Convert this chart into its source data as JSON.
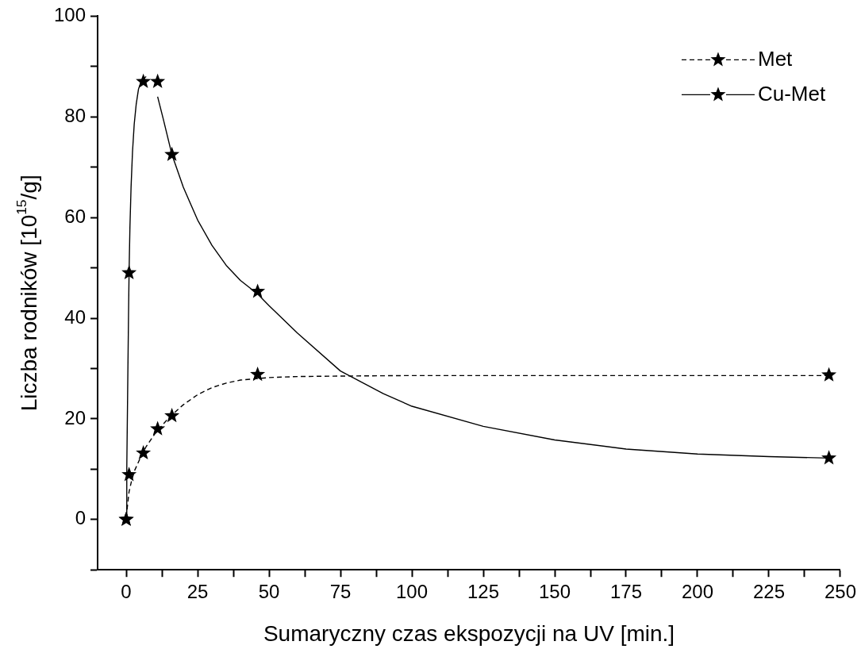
{
  "chart_data": {
    "type": "scatter",
    "xlabel": "Sumaryczny czas ekspozycji na UV [min.]",
    "ylabel": "Liczba rodników [10$^{15}$/g]",
    "xlim": [
      -10,
      250
    ],
    "xticks": [
      0,
      {
        "value": 12.5,
        "label": null
      },
      25,
      {
        "value": 37.5,
        "label": null
      },
      50,
      {
        "value": 62.5,
        "label": null
      },
      75,
      {
        "value": 87.5,
        "label": null
      },
      100,
      {
        "value": 112.5,
        "label": null
      },
      125,
      {
        "value": 137.5,
        "label": null
      },
      150,
      {
        "value": 162.5,
        "label": null
      },
      175,
      {
        "value": 187.5,
        "label": null
      },
      200,
      {
        "value": 212.5,
        "label": null
      },
      225,
      {
        "value": 237.5,
        "label": null
      },
      250
    ],
    "ylim": [
      -10,
      100
    ],
    "yticks": [
      {
        "value": -10,
        "label": null
      },
      0,
      {
        "value": 10,
        "label": null
      },
      20,
      {
        "value": 30,
        "label": null
      },
      40,
      {
        "value": 50,
        "label": null
      },
      60,
      {
        "value": 70,
        "label": null
      },
      80,
      {
        "value": 90,
        "label": null
      },
      100
    ],
    "grid": false,
    "legend": "top right",
    "series": [
      {
        "name": "Met",
        "type": "scatter",
        "marker": "star",
        "line_style": "dashed",
        "color": "#000000",
        "x": [
          0,
          1,
          6,
          11,
          16,
          46,
          246
        ],
        "values": [
          0,
          8.9,
          13.2,
          18.0,
          20.6,
          28.8,
          28.7
        ]
      },
      {
        "name": "Cu-Met",
        "type": "scatter",
        "marker": "star",
        "line_style": "solid",
        "color": "#000000",
        "x": [
          0,
          1,
          6,
          11,
          16,
          46,
          246
        ],
        "values": [
          0,
          49.0,
          87.0,
          87.0,
          72.5,
          45.3,
          12.2
        ]
      },
      {
        "type": "line",
        "marker": "none",
        "line_style": "dashed",
        "color": "#000000",
        "x": [
          0.3,
          1,
          2,
          3,
          5,
          7,
          10,
          13,
          16,
          20,
          25,
          30,
          35,
          40,
          50,
          60,
          75,
          100,
          150,
          200,
          246
        ],
        "values": [
          2,
          5.5,
          8,
          9.8,
          12.3,
          14.5,
          17,
          19,
          20.8,
          22.8,
          24.8,
          26.2,
          27.1,
          27.7,
          28.2,
          28.4,
          28.5,
          28.6,
          28.6,
          28.6,
          28.6
        ]
      },
      {
        "type": "line",
        "marker": "none",
        "line_style": "solid",
        "color": "#000000",
        "x": [
          0,
          0.2,
          0.5,
          0.8,
          1,
          1.3,
          1.7,
          2.2,
          2.8,
          3.5,
          4.3,
          5.2,
          6,
          7,
          null,
          11,
          13,
          16,
          20,
          25,
          30,
          35,
          40,
          46,
          50,
          60,
          75,
          90,
          100,
          125,
          150,
          175,
          200,
          225,
          246
        ],
        "values": [
          0,
          10,
          25,
          40,
          49,
          58,
          66,
          73,
          78.5,
          82.5,
          85.5,
          87,
          87.6,
          88,
          null,
          84,
          79.5,
          72.5,
          66,
          59.5,
          54.5,
          50.5,
          47.5,
          44.8,
          42.5,
          37,
          29.5,
          25,
          22.5,
          18.5,
          15.8,
          14,
          13,
          12.5,
          12.2
        ]
      }
    ]
  }
}
